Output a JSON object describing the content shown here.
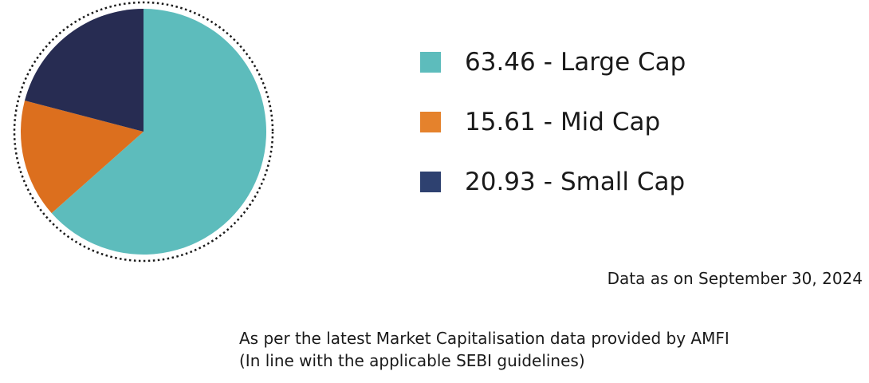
{
  "chart_data": {
    "type": "pie",
    "slices": [
      {
        "label": "Large Cap",
        "value": 63.46,
        "value_text": "63.46",
        "color": "#5dbcbc"
      },
      {
        "label": "Mid Cap",
        "value": 15.61,
        "value_text": "15.61",
        "color": "#dc6f1e"
      },
      {
        "label": "Small Cap",
        "value": 20.93,
        "value_text": "20.93",
        "color": "#272c52"
      }
    ],
    "legend_swatch_colors": [
      "#5dbcbc",
      "#e5822c",
      "#2e4170"
    ],
    "legend_separator": "-",
    "legend_placement": "right",
    "start_angle": "12 o'clock",
    "direction": "clockwise",
    "outline": "dotted circle"
  },
  "notes": {
    "date": "Data as on September 30, 2024",
    "source_line1": "As per the latest Market Capitalisation data provided by AMFI",
    "source_line2": "(In line with the applicable SEBI guidelines)"
  }
}
